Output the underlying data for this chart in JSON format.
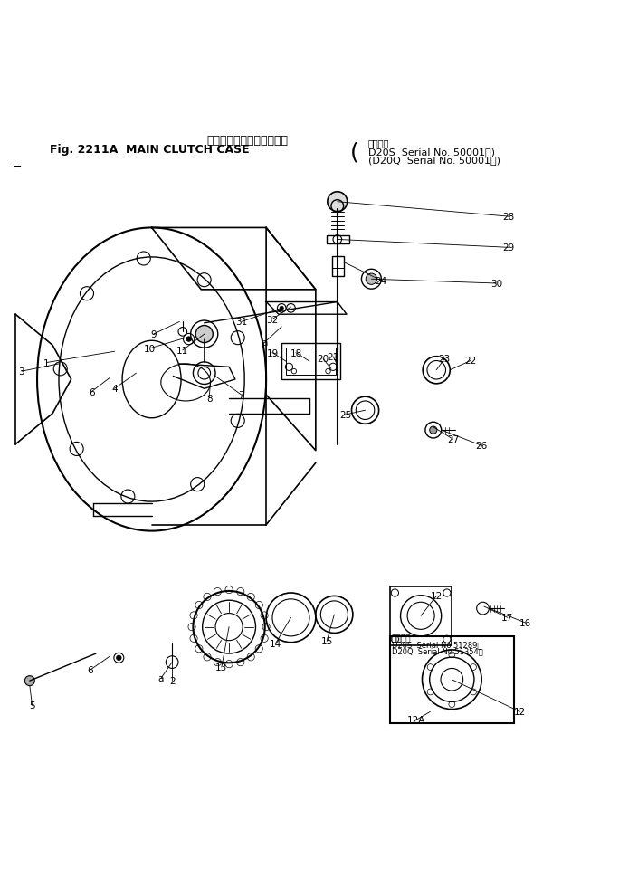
{
  "title_japanese": "メイン　クラッチ　ケース",
  "title_english": "Fig. 2211A  MAIN CLUTCH CASE",
  "serial_info_line1": "D20S  Serial No. 50001～)",
  "serial_info_line2": "(D20Q  Serial No. 50001～)",
  "applicability_label": "通用号機",
  "sub_serial_label": "通用号機",
  "sub_serial_line1": "D20S  Serial No.51289～",
  "sub_serial_line2": "D20Q  Serial No.51354～",
  "background_color": "#ffffff",
  "line_color": "#000000"
}
